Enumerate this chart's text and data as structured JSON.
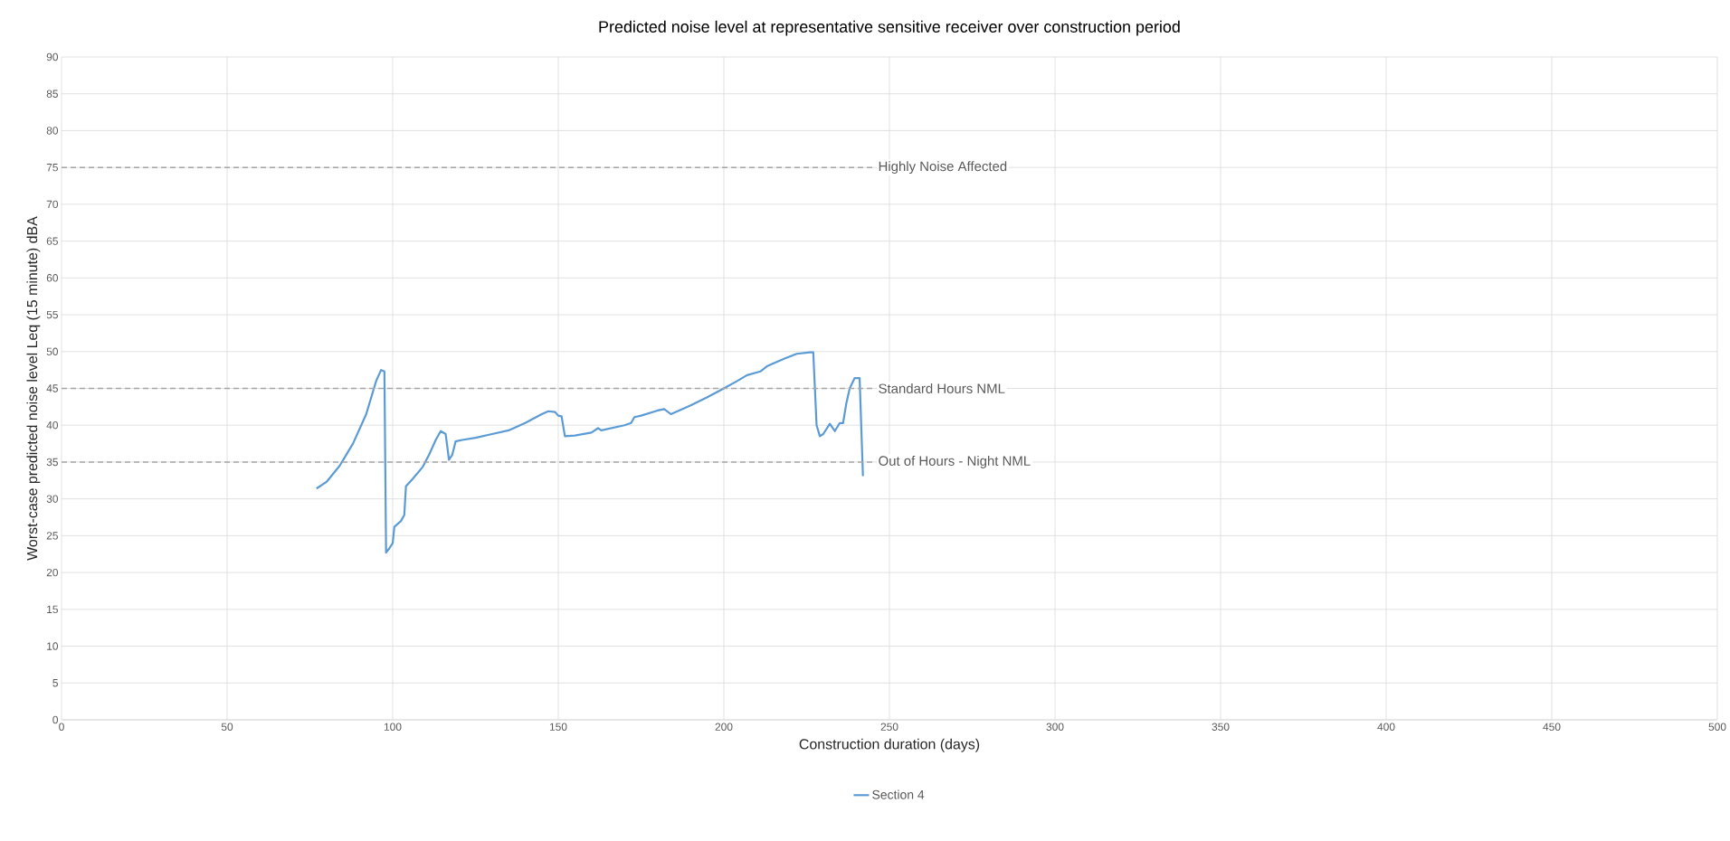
{
  "chart_data": {
    "type": "line",
    "title": "Predicted noise level at representative sensitive receiver over construction period",
    "xlabel": "Construction duration (days)",
    "ylabel": "Worst-case predicted noise level Leq (15 minute) dBA",
    "xlim": [
      0,
      500
    ],
    "xticks": [
      0,
      50,
      100,
      150,
      200,
      250,
      300,
      350,
      400,
      450,
      500
    ],
    "ylim": [
      0,
      90
    ],
    "yticks": [
      0,
      5,
      10,
      15,
      20,
      25,
      30,
      35,
      40,
      45,
      50,
      55,
      60,
      65,
      70,
      75,
      80,
      85,
      90
    ],
    "grid": true,
    "legend": "bottom",
    "line_style": "solid",
    "marker": "none",
    "ref_lines": [
      {
        "axis": "y",
        "value": 75,
        "label": "Highly Noise Affected",
        "color": "#a6a6a6",
        "line_style": "dashed"
      },
      {
        "axis": "y",
        "value": 45,
        "label": "Standard Hours NML",
        "color": "#a6a6a6",
        "line_style": "dashed"
      },
      {
        "axis": "y",
        "value": 35,
        "label": "Out of Hours - Night NML",
        "color": "#a6a6a6",
        "line_style": "dashed"
      }
    ],
    "series": [
      {
        "name": "Section 4",
        "color": "#5b9bd5",
        "x": [
          77,
          80,
          84,
          88,
          92,
          95,
          96.5,
          97.5,
          98,
          99,
          100,
          100.5,
          102.5,
          103.5,
          104,
          106,
          109,
          111,
          113,
          114.5,
          116,
          117,
          118,
          119,
          121,
          125,
          130,
          135,
          140,
          145,
          147,
          149,
          150,
          151,
          152,
          155,
          160,
          162,
          163,
          170,
          172,
          173,
          175,
          180,
          182,
          184,
          190,
          195,
          200,
          204,
          207,
          211,
          213,
          218,
          222,
          226,
          227,
          228,
          229,
          230,
          232,
          233.5,
          235,
          236,
          237,
          238,
          239.5,
          241,
          242
        ],
        "values": [
          31.4,
          32.3,
          34.5,
          37.5,
          41.5,
          46,
          47.5,
          47.3,
          22.7,
          23.3,
          24,
          26.2,
          27,
          27.8,
          31.7,
          32.7,
          34.3,
          36,
          38,
          39.2,
          38.8,
          35.3,
          36,
          37.8,
          38,
          38.3,
          38.8,
          39.3,
          40.3,
          41.5,
          41.9,
          41.8,
          41.3,
          41.2,
          38.5,
          38.6,
          39,
          39.6,
          39.3,
          40,
          40.3,
          41.1,
          41.3,
          42,
          42.2,
          41.5,
          42.7,
          43.8,
          45,
          46,
          46.8,
          47.3,
          48,
          49,
          49.7,
          49.9,
          49.9,
          40,
          38.5,
          38.8,
          40.2,
          39.2,
          40.3,
          40.3,
          43,
          45,
          46.4,
          46.4,
          33.1
        ]
      }
    ]
  }
}
